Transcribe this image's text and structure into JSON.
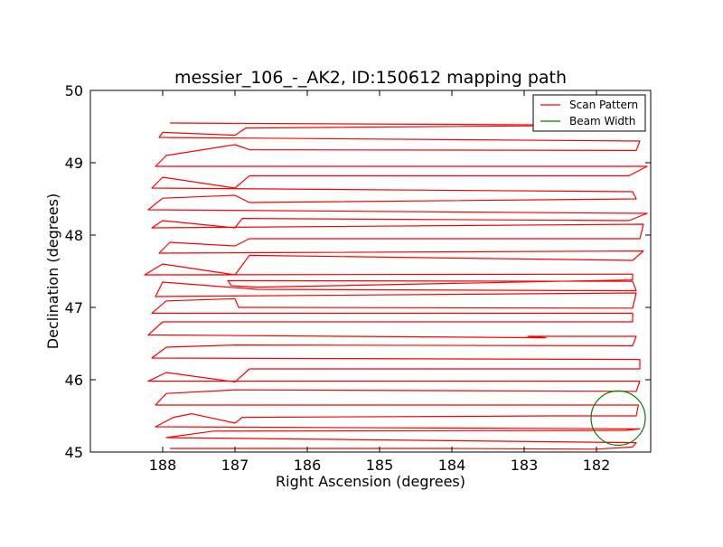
{
  "chart_data": {
    "type": "line",
    "title": "messier_106_-_AK2, ID:150612 mapping path",
    "xlabel": "Right Ascension (degrees)",
    "ylabel": "Declination (degrees)",
    "xlim": [
      189.0,
      181.25
    ],
    "ylim": [
      45.0,
      50.0
    ],
    "x_ticks": [
      188,
      187,
      186,
      185,
      184,
      183,
      182
    ],
    "y_ticks": [
      45,
      46,
      47,
      48,
      49,
      50
    ],
    "x_tick_labels": [
      "188",
      "187",
      "186",
      "185",
      "184",
      "183",
      "182"
    ],
    "y_tick_labels": [
      "45",
      "46",
      "47",
      "48",
      "49",
      "50"
    ],
    "grid": false,
    "legend": {
      "placement": "top-right",
      "entries": [
        {
          "label": "Scan Pattern",
          "color": "#ff0000"
        },
        {
          "label": "Beam Width",
          "color": "#008000"
        }
      ]
    },
    "series": [
      {
        "name": "Scan Pattern",
        "color": "#ff0000",
        "points": [
          [
            187.9,
            45.05
          ],
          [
            184.0,
            45.05
          ],
          [
            182.0,
            45.04
          ],
          [
            181.5,
            45.07
          ],
          [
            181.45,
            45.13
          ],
          [
            187.95,
            45.2
          ],
          [
            187.3,
            45.29
          ],
          [
            181.6,
            45.3
          ],
          [
            181.4,
            45.32
          ],
          [
            188.1,
            45.35
          ],
          [
            187.85,
            45.48
          ],
          [
            187.6,
            45.53
          ],
          [
            187.0,
            45.4
          ],
          [
            186.9,
            45.48
          ],
          [
            182.6,
            45.5
          ],
          [
            181.45,
            45.5
          ],
          [
            181.42,
            45.65
          ],
          [
            188.0,
            45.65
          ],
          [
            188.1,
            45.65
          ],
          [
            187.95,
            45.81
          ],
          [
            187.0,
            45.86
          ],
          [
            181.45,
            45.84
          ],
          [
            181.4,
            45.98
          ],
          [
            188.2,
            45.98
          ],
          [
            187.95,
            46.1
          ],
          [
            187.0,
            45.97
          ],
          [
            186.8,
            46.15
          ],
          [
            181.4,
            46.15
          ],
          [
            181.4,
            46.28
          ],
          [
            188.15,
            46.3
          ],
          [
            187.95,
            46.45
          ],
          [
            187.0,
            46.48
          ],
          [
            181.5,
            46.47
          ],
          [
            181.45,
            46.6
          ],
          [
            182.95,
            46.6
          ],
          [
            182.7,
            46.58
          ],
          [
            188.2,
            46.62
          ],
          [
            188.0,
            46.8
          ],
          [
            181.5,
            46.8
          ],
          [
            181.5,
            46.92
          ],
          [
            188.15,
            46.92
          ],
          [
            187.95,
            47.09
          ],
          [
            187.0,
            47.12
          ],
          [
            186.95,
            47.0
          ],
          [
            186.6,
            47.0
          ],
          [
            181.5,
            46.99
          ],
          [
            181.45,
            47.2
          ],
          [
            188.1,
            47.15
          ],
          [
            188.0,
            47.35
          ],
          [
            186.7,
            47.25
          ],
          [
            181.45,
            47.23
          ],
          [
            181.5,
            47.36
          ],
          [
            187.1,
            47.37
          ],
          [
            187.05,
            47.3
          ],
          [
            186.7,
            47.28
          ],
          [
            181.5,
            47.38
          ],
          [
            181.5,
            47.46
          ],
          [
            188.25,
            47.45
          ],
          [
            188.0,
            47.6
          ],
          [
            187.0,
            47.45
          ],
          [
            186.8,
            47.72
          ],
          [
            181.5,
            47.65
          ],
          [
            181.35,
            47.78
          ],
          [
            188.05,
            47.75
          ],
          [
            187.9,
            47.9
          ],
          [
            187.0,
            47.85
          ],
          [
            186.8,
            47.95
          ],
          [
            181.4,
            47.95
          ],
          [
            181.35,
            48.15
          ],
          [
            188.15,
            48.1
          ],
          [
            188.0,
            48.2
          ],
          [
            187.0,
            48.1
          ],
          [
            186.9,
            48.23
          ],
          [
            181.55,
            48.2
          ],
          [
            181.3,
            48.3
          ],
          [
            188.2,
            48.35
          ],
          [
            188.0,
            48.51
          ],
          [
            187.0,
            48.55
          ],
          [
            186.8,
            48.45
          ],
          [
            181.45,
            48.5
          ],
          [
            181.5,
            48.6
          ],
          [
            188.15,
            48.65
          ],
          [
            188.0,
            48.8
          ],
          [
            187.0,
            48.65
          ],
          [
            186.8,
            48.82
          ],
          [
            181.55,
            48.82
          ],
          [
            181.3,
            48.95
          ],
          [
            188.1,
            48.95
          ],
          [
            187.95,
            49.1
          ],
          [
            187.0,
            49.25
          ],
          [
            186.8,
            49.18
          ],
          [
            181.45,
            49.17
          ],
          [
            181.4,
            49.3
          ],
          [
            188.05,
            49.35
          ],
          [
            188.0,
            49.42
          ],
          [
            187.0,
            49.38
          ],
          [
            186.85,
            49.48
          ],
          [
            181.5,
            49.52
          ],
          [
            182.0,
            49.52
          ],
          [
            187.9,
            49.55
          ]
        ]
      }
    ],
    "beam_width": {
      "name": "Beam Width",
      "color": "#008000",
      "center": [
        181.7,
        45.47
      ],
      "diameter_deg": 0.75
    }
  }
}
